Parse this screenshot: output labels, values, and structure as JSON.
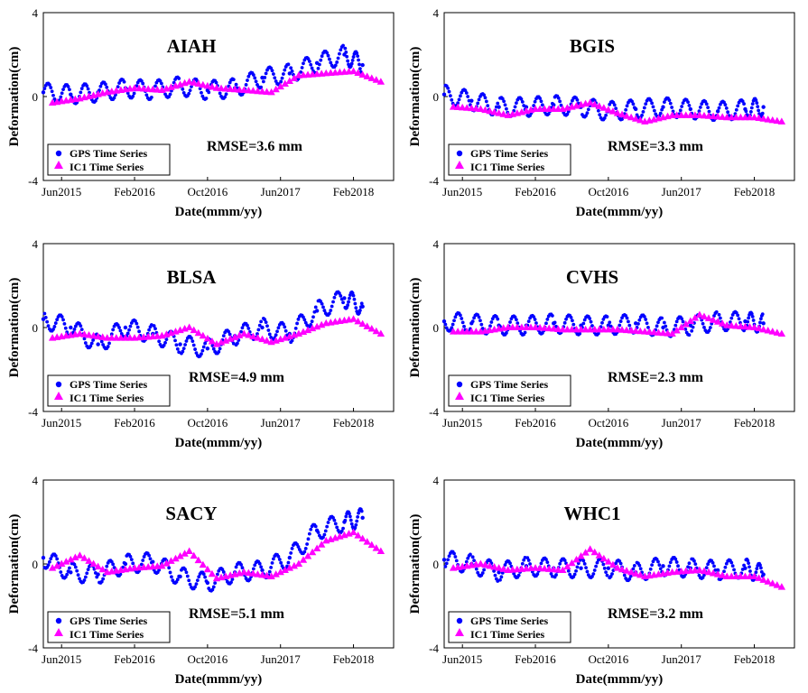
{
  "figure": {
    "panels": [
      {
        "station": "AIAH",
        "rmse": "RMSE=3.6 mm",
        "xlabel": "Date(mmm/yy)",
        "ylabel": "Deformation(cm)",
        "y_ticks": [
          "4",
          "0",
          "-4"
        ],
        "x_ticks": [
          "Jun2015",
          "Feb2016",
          "Oct2016",
          "Jun2017",
          "Feb2018"
        ],
        "legend": [
          "GPS Time Series",
          "IC1 Time Series"
        ]
      },
      {
        "station": "BGIS",
        "rmse": "RMSE=3.3 mm",
        "xlabel": "Date(mmm/yy)",
        "ylabel": "Deformation(cm)",
        "y_ticks": [
          "4",
          "0",
          "-4"
        ],
        "x_ticks": [
          "Jun2015",
          "Feb2016",
          "Oct2016",
          "Jun2017",
          "Feb2018"
        ],
        "legend": [
          "GPS Time Series",
          "IC1 Time Series"
        ]
      },
      {
        "station": "BLSA",
        "rmse": "RMSE=4.9 mm",
        "xlabel": "Date(mmm/yy)",
        "ylabel": "Deformation(cm)",
        "y_ticks": [
          "4",
          "0",
          "-4"
        ],
        "x_ticks": [
          "Jun2015",
          "Feb2016",
          "Oct2016",
          "Jun2017",
          "Feb2018"
        ],
        "legend": [
          "GPS Time Series",
          "IC1 Time Series"
        ]
      },
      {
        "station": "CVHS",
        "rmse": "RMSE=2.3 mm",
        "xlabel": "Date(mmm/yy)",
        "ylabel": "Deformation(cm)",
        "y_ticks": [
          "4",
          "0",
          "-4"
        ],
        "x_ticks": [
          "Jun2015",
          "Feb2016",
          "Oct2016",
          "Jun2017",
          "Feb2018"
        ],
        "legend": [
          "GPS Time Series",
          "IC1 Time Series"
        ]
      },
      {
        "station": "SACY",
        "rmse": "RMSE=5.1 mm",
        "xlabel": "Date(mmm/yy)",
        "ylabel": "Deformation(cm)",
        "y_ticks": [
          "4",
          "0",
          "-4"
        ],
        "x_ticks": [
          "Jun2015",
          "Feb2016",
          "Oct2016",
          "Jun2017",
          "Feb2018"
        ],
        "legend": [
          "GPS Time Series",
          "IC1 Time Series"
        ]
      },
      {
        "station": "WHC1",
        "rmse": "RMSE=3.2 mm",
        "xlabel": "Date(mmm/yy)",
        "ylabel": "Deformation(cm)",
        "y_ticks": [
          "4",
          "0",
          "-4"
        ],
        "x_ticks": [
          "Jun2015",
          "Feb2016",
          "Oct2016",
          "Jun2017",
          "Feb2018"
        ],
        "legend": [
          "GPS Time Series",
          "IC1 Time Series"
        ]
      }
    ]
  },
  "chart_data": [
    {
      "type": "scatter",
      "title": "AIAH",
      "annotation": "RMSE=3.6 mm",
      "xlabel": "Date(mmm/yy)",
      "ylabel": "Deformation(cm)",
      "ylim": [
        -4,
        4
      ],
      "xlim": [
        "2015-04",
        "2018-06"
      ],
      "grid": false,
      "legend_position": "bottom-left",
      "x_ticks": [
        "2015-06",
        "2016-02",
        "2016-10",
        "2017-06",
        "2018-02"
      ],
      "series": [
        {
          "name": "GPS Time Series",
          "marker": "circle",
          "color": "#0000ff",
          "x": [
            "2015-04",
            "2015-07",
            "2015-10",
            "2016-01",
            "2016-04",
            "2016-07",
            "2016-10",
            "2017-01",
            "2017-04",
            "2017-07",
            "2017-10",
            "2018-01",
            "2018-03"
          ],
          "y": [
            0.2,
            0.1,
            0.2,
            0.4,
            0.3,
            0.5,
            0.3,
            0.4,
            0.9,
            1.1,
            1.6,
            2.0,
            1.5
          ]
        },
        {
          "name": "IC1 Time Series",
          "marker": "triangle",
          "color": "#ff00ff",
          "x": [
            "2015-05",
            "2015-08",
            "2015-11",
            "2016-02",
            "2016-05",
            "2016-08",
            "2016-11",
            "2017-02",
            "2017-05",
            "2017-08",
            "2017-11",
            "2018-02",
            "2018-05"
          ],
          "y": [
            -0.3,
            -0.1,
            0.2,
            0.4,
            0.3,
            0.7,
            0.4,
            0.3,
            0.2,
            1.0,
            1.1,
            1.2,
            0.7
          ]
        }
      ]
    },
    {
      "type": "scatter",
      "title": "BGIS",
      "annotation": "RMSE=3.3 mm",
      "xlabel": "Date(mmm/yy)",
      "ylabel": "Deformation(cm)",
      "ylim": [
        -4,
        4
      ],
      "xlim": [
        "2015-04",
        "2018-06"
      ],
      "grid": false,
      "legend_position": "bottom-left",
      "x_ticks": [
        "2015-06",
        "2016-02",
        "2016-10",
        "2017-06",
        "2018-02"
      ],
      "series": [
        {
          "name": "GPS Time Series",
          "marker": "circle",
          "color": "#0000ff",
          "x": [
            "2015-04",
            "2015-07",
            "2015-10",
            "2016-01",
            "2016-04",
            "2016-07",
            "2016-10",
            "2017-01",
            "2017-04",
            "2017-07",
            "2017-10",
            "2018-01",
            "2018-03"
          ],
          "y": [
            0.1,
            -0.2,
            -0.5,
            -0.5,
            -0.4,
            -0.5,
            -0.7,
            -0.6,
            -0.5,
            -0.6,
            -0.7,
            -0.6,
            -0.5
          ]
        },
        {
          "name": "IC1 Time Series",
          "marker": "triangle",
          "color": "#ff00ff",
          "x": [
            "2015-05",
            "2015-08",
            "2015-11",
            "2016-02",
            "2016-05",
            "2016-08",
            "2016-11",
            "2017-02",
            "2017-05",
            "2017-08",
            "2017-11",
            "2018-02",
            "2018-05"
          ],
          "y": [
            -0.5,
            -0.6,
            -0.9,
            -0.6,
            -0.6,
            -0.3,
            -0.8,
            -1.2,
            -0.9,
            -0.9,
            -1.0,
            -1.0,
            -1.2
          ]
        }
      ]
    },
    {
      "type": "scatter",
      "title": "BLSA",
      "annotation": "RMSE=4.9 mm",
      "xlabel": "Date(mmm/yy)",
      "ylabel": "Deformation(cm)",
      "ylim": [
        -4,
        4
      ],
      "xlim": [
        "2015-04",
        "2018-06"
      ],
      "grid": false,
      "legend_position": "bottom-left",
      "x_ticks": [
        "2015-06",
        "2016-02",
        "2016-10",
        "2017-06",
        "2018-02"
      ],
      "series": [
        {
          "name": "GPS Time Series",
          "marker": "circle",
          "color": "#0000ff",
          "x": [
            "2015-04",
            "2015-07",
            "2015-10",
            "2016-01",
            "2016-04",
            "2016-07",
            "2016-10",
            "2017-01",
            "2017-04",
            "2017-07",
            "2017-10",
            "2018-01",
            "2018-03"
          ],
          "y": [
            0.4,
            0.0,
            -0.8,
            0.0,
            -0.3,
            -0.8,
            -1.0,
            -0.4,
            0.0,
            -0.3,
            0.8,
            1.4,
            1.0
          ]
        },
        {
          "name": "IC1 Time Series",
          "marker": "triangle",
          "color": "#ff00ff",
          "x": [
            "2015-05",
            "2015-08",
            "2015-11",
            "2016-02",
            "2016-05",
            "2016-08",
            "2016-11",
            "2017-02",
            "2017-05",
            "2017-08",
            "2017-11",
            "2018-02",
            "2018-05"
          ],
          "y": [
            -0.5,
            -0.3,
            -0.5,
            -0.5,
            -0.4,
            0.0,
            -0.8,
            -0.3,
            -0.7,
            -0.3,
            0.2,
            0.4,
            -0.3
          ]
        }
      ]
    },
    {
      "type": "scatter",
      "title": "CVHS",
      "annotation": "RMSE=2.3 mm",
      "xlabel": "Date(mmm/yy)",
      "ylabel": "Deformation(cm)",
      "ylim": [
        -4,
        4
      ],
      "xlim": [
        "2015-04",
        "2018-06"
      ],
      "grid": false,
      "legend_position": "bottom-left",
      "x_ticks": [
        "2015-06",
        "2016-02",
        "2016-10",
        "2017-06",
        "2018-02"
      ],
      "series": [
        {
          "name": "GPS Time Series",
          "marker": "circle",
          "color": "#0000ff",
          "x": [
            "2015-04",
            "2015-07",
            "2015-10",
            "2016-01",
            "2016-04",
            "2016-07",
            "2016-10",
            "2017-01",
            "2017-04",
            "2017-07",
            "2017-10",
            "2018-01",
            "2018-03"
          ],
          "y": [
            0.3,
            0.2,
            0.1,
            0.1,
            0.2,
            0.1,
            0.1,
            0.2,
            0.0,
            0.1,
            0.3,
            0.3,
            0.2
          ]
        },
        {
          "name": "IC1 Time Series",
          "marker": "triangle",
          "color": "#ff00ff",
          "x": [
            "2015-05",
            "2015-08",
            "2015-11",
            "2016-02",
            "2016-05",
            "2016-08",
            "2016-11",
            "2017-02",
            "2017-05",
            "2017-08",
            "2017-11",
            "2018-02",
            "2018-05"
          ],
          "y": [
            -0.2,
            -0.2,
            0.0,
            0.0,
            -0.1,
            -0.1,
            -0.1,
            -0.2,
            -0.3,
            0.6,
            0.1,
            0.0,
            -0.3
          ]
        }
      ]
    },
    {
      "type": "scatter",
      "title": "SACY",
      "annotation": "RMSE=5.1 mm",
      "xlabel": "Date(mmm/yy)",
      "ylabel": "Deformation(cm)",
      "ylim": [
        -4,
        4
      ],
      "xlim": [
        "2015-04",
        "2018-06"
      ],
      "grid": false,
      "legend_position": "bottom-left",
      "x_ticks": [
        "2015-06",
        "2016-02",
        "2016-10",
        "2017-06",
        "2018-02"
      ],
      "series": [
        {
          "name": "GPS Time Series",
          "marker": "circle",
          "color": "#0000ff",
          "x": [
            "2015-04",
            "2015-07",
            "2015-10",
            "2016-01",
            "2016-04",
            "2016-07",
            "2016-10",
            "2017-01",
            "2017-04",
            "2017-07",
            "2017-10",
            "2018-01",
            "2018-03"
          ],
          "y": [
            0.3,
            -0.4,
            -0.5,
            0.0,
            0.1,
            -0.6,
            -0.9,
            -0.4,
            -0.3,
            0.3,
            1.6,
            2.0,
            2.2
          ]
        },
        {
          "name": "IC1 Time Series",
          "marker": "triangle",
          "color": "#ff00ff",
          "x": [
            "2015-05",
            "2015-08",
            "2015-11",
            "2016-02",
            "2016-05",
            "2016-08",
            "2016-11",
            "2017-02",
            "2017-05",
            "2017-08",
            "2017-11",
            "2018-02",
            "2018-05"
          ],
          "y": [
            -0.2,
            0.4,
            -0.4,
            -0.2,
            -0.1,
            0.6,
            -0.7,
            -0.4,
            -0.6,
            0.0,
            1.1,
            1.5,
            0.6
          ]
        }
      ]
    },
    {
      "type": "scatter",
      "title": "WHC1",
      "annotation": "RMSE=3.2 mm",
      "xlabel": "Date(mmm/yy)",
      "ylabel": "Deformation(cm)",
      "ylim": [
        -4,
        4
      ],
      "xlim": [
        "2015-04",
        "2018-06"
      ],
      "grid": false,
      "legend_position": "bottom-left",
      "x_ticks": [
        "2015-06",
        "2016-02",
        "2016-10",
        "2017-06",
        "2018-02"
      ],
      "series": [
        {
          "name": "GPS Time Series",
          "marker": "circle",
          "color": "#0000ff",
          "x": [
            "2015-04",
            "2015-07",
            "2015-10",
            "2016-01",
            "2016-04",
            "2016-07",
            "2016-10",
            "2017-01",
            "2017-04",
            "2017-07",
            "2017-10",
            "2018-01",
            "2018-03"
          ],
          "y": [
            0.2,
            0.0,
            -0.4,
            -0.1,
            -0.2,
            -0.2,
            -0.2,
            -0.4,
            -0.1,
            -0.2,
            -0.3,
            -0.2,
            -0.5
          ]
        },
        {
          "name": "IC1 Time Series",
          "marker": "triangle",
          "color": "#ff00ff",
          "x": [
            "2015-05",
            "2015-08",
            "2015-11",
            "2016-02",
            "2016-05",
            "2016-08",
            "2016-11",
            "2017-02",
            "2017-05",
            "2017-08",
            "2017-11",
            "2018-02",
            "2018-05"
          ],
          "y": [
            -0.2,
            0.0,
            -0.3,
            -0.2,
            -0.3,
            0.7,
            -0.2,
            -0.6,
            -0.4,
            -0.3,
            -0.6,
            -0.6,
            -1.1
          ]
        }
      ]
    }
  ]
}
